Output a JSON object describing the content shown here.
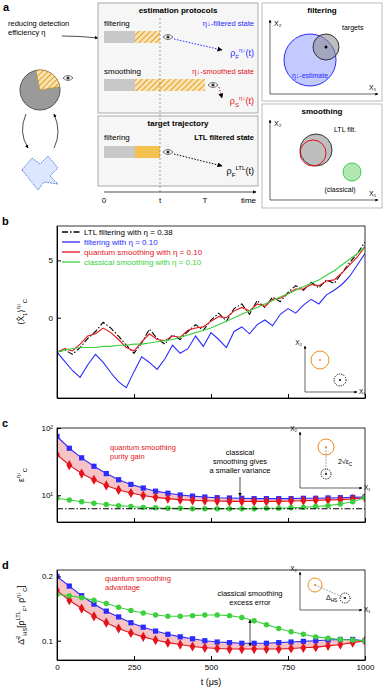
{
  "diagram": {
    "label": "a",
    "caption": [
      "reducing detection",
      "efficiency η"
    ],
    "protocols_title": "estimation protocols",
    "rows": [
      {
        "name": "filtering",
        "output": "η↓-filtered state",
        "color": "#2b2bff",
        "symbol": {
          "base": "ρ",
          "sub": "F",
          "sup": "η↓",
          "arg": "(t)"
        }
      },
      {
        "name": "smoothing",
        "output": "η↓-smoothed state",
        "color": "#e3141b",
        "symbol": {
          "base": "ρ",
          "sub": "S",
          "sup": "η↓",
          "arg": "(t)"
        }
      }
    ],
    "target_title": "target trajectory",
    "target_row": {
      "name": "filtering",
      "output": "LTL filtered state",
      "color": "#000000",
      "symbol": {
        "base": "ρ",
        "sub": "F",
        "sup": "LTL",
        "arg": "(t)"
      }
    },
    "time_labels": [
      "0",
      "t",
      "T",
      "time"
    ],
    "insets": [
      {
        "title": "filtering",
        "labels": [
          "targets",
          "η↓-estimate"
        ]
      },
      {
        "title": "smoothing",
        "labels": [
          "LTL filt.",
          "(classical)"
        ]
      }
    ],
    "axis_labels": [
      "X₁",
      "X₂"
    ]
  },
  "chart_data": [
    {
      "type": "line",
      "label": "b",
      "ylabel": [
        {
          "text": "⟨X̂",
          "sub": "1"
        },
        {
          "text": "⟩",
          "sup": "η↓",
          "sub": "C"
        }
      ],
      "xlim": [
        0,
        1000
      ],
      "xticks": [
        0,
        250,
        500,
        750,
        1000
      ],
      "ylim": [
        -7,
        8
      ],
      "yticks": [
        0,
        5
      ],
      "tick_labels": "y",
      "legend": "upper left",
      "x": [
        0,
        25,
        50,
        75,
        100,
        125,
        150,
        175,
        200,
        225,
        250,
        275,
        300,
        325,
        350,
        375,
        400,
        425,
        450,
        475,
        500,
        525,
        550,
        575,
        600,
        625,
        650,
        675,
        700,
        725,
        750,
        775,
        800,
        825,
        850,
        875,
        900,
        925,
        950,
        975,
        1000
      ],
      "series": [
        {
          "name": "LTL filtering with η = 0.38",
          "color": "#000000",
          "line_style": "dashdot",
          "values": [
            -3.0,
            -2.8,
            -3.2,
            -2.6,
            -1.8,
            -1.2,
            -0.4,
            -0.9,
            -1.6,
            -2.4,
            -3.1,
            -2.2,
            -1.0,
            -1.8,
            -2.3,
            -1.5,
            -1.9,
            -1.2,
            -0.6,
            -1.1,
            -0.2,
            0.4,
            -0.3,
            0.8,
            1.2,
            0.3,
            1.5,
            0.9,
            1.8,
            1.4,
            2.2,
            2.8,
            2.4,
            3.1,
            2.6,
            3.3,
            3.0,
            3.9,
            4.8,
            5.6,
            6.6
          ]
        },
        {
          "name": "filtering with η = 0.10",
          "color": "#2b2bff",
          "line_style": "solid",
          "values": [
            -3.0,
            -3.8,
            -4.6,
            -5.2,
            -4.1,
            -3.2,
            -3.9,
            -4.8,
            -5.6,
            -6.1,
            -4.7,
            -3.4,
            -3.9,
            -4.5,
            -3.6,
            -2.4,
            -3.1,
            -2.7,
            -1.6,
            -2.5,
            -1.3,
            -1.9,
            -2.6,
            -1.2,
            -0.8,
            -1.4,
            -0.6,
            -0.2,
            -0.7,
            0.3,
            0.8,
            0.4,
            1.1,
            1.6,
            1.2,
            2.0,
            2.4,
            2.9,
            3.6,
            4.6,
            5.6
          ]
        },
        {
          "name": "quantum smoothing with η = 0.10",
          "color": "#e3141b",
          "line_style": "solid",
          "values": [
            -3.0,
            -2.7,
            -2.9,
            -2.3,
            -1.6,
            -1.4,
            -0.9,
            -1.3,
            -1.9,
            -2.6,
            -2.9,
            -2.1,
            -1.4,
            -1.9,
            -2.0,
            -1.6,
            -1.7,
            -1.1,
            -0.9,
            -0.8,
            -0.3,
            0.1,
            0.0,
            0.6,
            0.9,
            0.6,
            1.2,
            1.0,
            1.6,
            1.7,
            2.1,
            2.5,
            2.5,
            2.9,
            2.8,
            3.2,
            3.3,
            3.9,
            4.6,
            5.3,
            6.2
          ]
        },
        {
          "name": "classical smoothing with η = 0.10",
          "color": "#3ecf3e",
          "line_style": "solid",
          "values": [
            -3.0,
            -2.8,
            -2.7,
            -2.6,
            -2.6,
            -2.6,
            -2.5,
            -2.5,
            -2.4,
            -2.4,
            -2.3,
            -2.3,
            -2.2,
            -2.1,
            -2.0,
            -1.9,
            -1.7,
            -1.5,
            -1.3,
            -1.1,
            -0.9,
            -0.6,
            -0.3,
            0.0,
            0.3,
            0.6,
            0.9,
            1.2,
            1.5,
            1.8,
            2.1,
            2.4,
            2.7,
            3.0,
            3.3,
            3.7,
            4.1,
            4.6,
            5.1,
            5.6,
            6.2
          ]
        }
      ]
    },
    {
      "type": "line",
      "label": "c",
      "ylabel": [
        {
          "text": "ε",
          "sup": "η↓",
          "sub": "C"
        }
      ],
      "xlim": [
        0,
        1000
      ],
      "xticks": [
        0,
        250,
        500,
        750,
        1000
      ],
      "ylim": [
        4,
        100
      ],
      "yticks": [
        {
          "value": 10,
          "label": "10¹"
        },
        {
          "value": 100,
          "label": "10²"
        }
      ],
      "log": "y",
      "tick_labels": "y",
      "annotations": [
        {
          "lines": [
            "quantum smoothing",
            "purity gain"
          ],
          "color": "#e3141b"
        },
        {
          "lines": [
            "classical",
            "smoothing gives",
            "a smaller variance"
          ],
          "color": "#000000"
        }
      ],
      "inset_label": [
        {
          "text": "2√ε",
          "sub": "C"
        }
      ],
      "x": [
        0,
        40,
        80,
        120,
        160,
        200,
        240,
        280,
        320,
        360,
        400,
        440,
        480,
        520,
        560,
        600,
        640,
        680,
        720,
        760,
        800,
        840,
        880,
        920,
        960,
        1000
      ],
      "series": [
        {
          "color": "#2b2bff",
          "marker": "square",
          "line_style": "solid",
          "values": [
            75,
            50,
            36,
            27,
            21,
            17,
            14.5,
            12.8,
            11.5,
            10.7,
            10.1,
            9.7,
            9.4,
            9.2,
            9.1,
            9.0,
            8.9,
            8.9,
            8.9,
            8.9,
            9.0,
            9.0,
            9.1,
            9.2,
            9.3,
            9.4
          ]
        },
        {
          "color": "#e3141b",
          "marker": "diamond",
          "line_style": "solid",
          "values": [
            40,
            28,
            21,
            17,
            14,
            12,
            10.8,
            9.9,
            9.3,
            8.9,
            8.6,
            8.4,
            8.3,
            8.2,
            8.1,
            8.1,
            8.1,
            8.1,
            8.1,
            8.2,
            8.3,
            8.4,
            8.5,
            8.6,
            8.8,
            9.2
          ]
        },
        {
          "color": "#3ecf3e",
          "marker": "circle",
          "line_style": "solid",
          "values": [
            9.0,
            8.5,
            8.0,
            7.6,
            7.3,
            7.0,
            6.8,
            6.6,
            6.5,
            6.4,
            6.4,
            6.3,
            6.3,
            6.3,
            6.3,
            6.3,
            6.3,
            6.4,
            6.4,
            6.5,
            6.6,
            6.8,
            7.0,
            7.4,
            8.0,
            9.2
          ]
        },
        {
          "color": "#000000",
          "line_style": "dashdot",
          "x": [
            0,
            1000
          ],
          "values": [
            6.3,
            6.3
          ]
        }
      ]
    },
    {
      "type": "line",
      "label": "d",
      "ylabel": [
        {
          "text": "Δ̄",
          "sup": "2",
          "sub": "HS"
        },
        {
          "text": "[ρ",
          "sup": "LTL",
          "sub": "F"
        },
        {
          "text": ", ρ",
          "sup": "η↓",
          "sub": "C"
        },
        {
          "text": "]"
        }
      ],
      "xlabel": "t (μs)",
      "xlim": [
        0,
        1000
      ],
      "xticks": [
        0,
        250,
        500,
        750,
        1000
      ],
      "ylim": [
        0.07,
        0.21
      ],
      "yticks": [
        0.1,
        0.2
      ],
      "annotations": [
        {
          "lines": [
            "quantum smoothing",
            "advantage"
          ],
          "color": "#e3141b"
        },
        {
          "lines": [
            "classical smoothing",
            "excess error"
          ],
          "color": "#000000"
        }
      ],
      "inset_label": [
        {
          "text": "Δ",
          "sub": "HS"
        }
      ],
      "x": [
        0,
        40,
        80,
        120,
        160,
        200,
        240,
        280,
        320,
        360,
        400,
        440,
        480,
        520,
        560,
        600,
        640,
        680,
        720,
        760,
        800,
        840,
        880,
        920,
        960,
        1000
      ],
      "series": [
        {
          "color": "#2b2bff",
          "marker": "square",
          "line_style": "solid",
          "values": [
            0.2,
            0.185,
            0.17,
            0.157,
            0.146,
            0.137,
            0.128,
            0.121,
            0.115,
            0.11,
            0.106,
            0.103,
            0.1,
            0.098,
            0.097,
            0.096,
            0.096,
            0.096,
            0.097,
            0.098,
            0.099,
            0.1,
            0.101,
            0.102,
            0.102,
            0.1
          ]
        },
        {
          "color": "#e3141b",
          "marker": "diamond",
          "line_style": "solid",
          "values": [
            0.178,
            0.163,
            0.15,
            0.138,
            0.128,
            0.119,
            0.112,
            0.106,
            0.101,
            0.097,
            0.094,
            0.091,
            0.089,
            0.088,
            0.087,
            0.087,
            0.087,
            0.087,
            0.087,
            0.088,
            0.089,
            0.09,
            0.092,
            0.094,
            0.097,
            0.1
          ]
        },
        {
          "color": "#3ecf3e",
          "marker": "circle",
          "line_style": "solid",
          "values": [
            0.172,
            0.17,
            0.167,
            0.163,
            0.158,
            0.152,
            0.147,
            0.143,
            0.14,
            0.138,
            0.138,
            0.139,
            0.14,
            0.14,
            0.139,
            0.136,
            0.131,
            0.125,
            0.119,
            0.114,
            0.11,
            0.106,
            0.104,
            0.102,
            0.101,
            0.1
          ]
        }
      ]
    }
  ]
}
